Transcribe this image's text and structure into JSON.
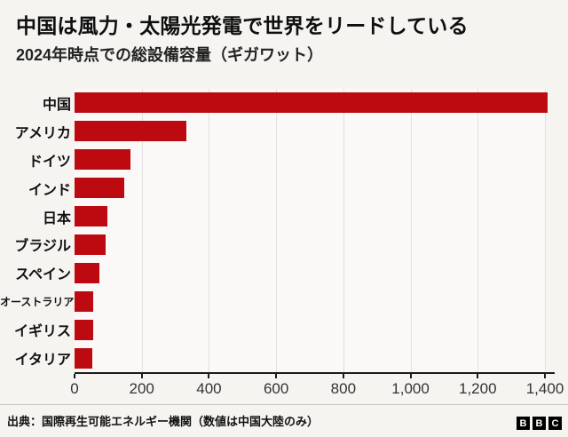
{
  "chart_data": {
    "type": "bar",
    "orientation": "horizontal",
    "title": "中国は風力・太陽光発電で世界をリードしている",
    "subtitle": "2024年時点での総設備容量（ギガワット）",
    "categories": [
      "中国",
      "アメリカ",
      "ドイツ",
      "インド",
      "日本",
      "ブラジル",
      "スペイン",
      "オーストラリア",
      "イギリス",
      "イタリア"
    ],
    "values": [
      1408,
      332,
      167,
      149,
      98,
      92,
      74,
      56,
      55,
      53
    ],
    "xlim": [
      0,
      1400
    ],
    "xticks": [
      0,
      200,
      400,
      600,
      800,
      1000,
      1200,
      1400
    ],
    "xtick_labels": [
      "0",
      "200",
      "400",
      "600",
      "800",
      "1,000",
      "1,200",
      "1,400"
    ],
    "bar_color": "#bd0a10",
    "grid": true,
    "legend": "none",
    "xlabel": "",
    "ylabel": ""
  },
  "footer": {
    "source": "出典：国際再生可能エネルギー機関（数値は中国大陸のみ）",
    "logo_letters": [
      "B",
      "B",
      "C"
    ]
  }
}
